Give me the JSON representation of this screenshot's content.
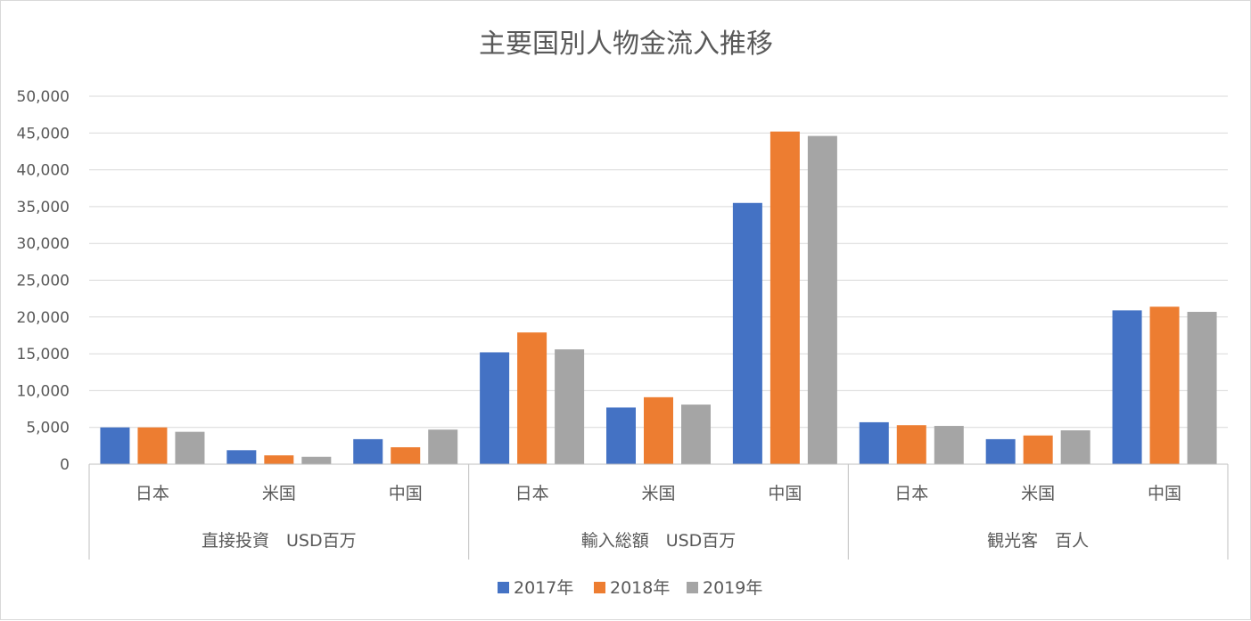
{
  "chart_data": {
    "type": "bar",
    "title": "主要国別人物金流入推移",
    "groups": [
      {
        "label": "直接投資　USD百万",
        "categories": [
          "日本",
          "米国",
          "中国"
        ]
      },
      {
        "label": "輸入総額　USD百万",
        "categories": [
          "日本",
          "米国",
          "中国"
        ]
      },
      {
        "label": "観光客　百人",
        "categories": [
          "日本",
          "米国",
          "中国"
        ]
      }
    ],
    "series": [
      {
        "name": "2017年",
        "color": "#4472C4",
        "values": [
          5000,
          1900,
          3400,
          15200,
          7700,
          35500,
          5700,
          3400,
          20900
        ]
      },
      {
        "name": "2018年",
        "color": "#ED7D31",
        "values": [
          5000,
          1200,
          2300,
          17900,
          9100,
          45200,
          5300,
          3900,
          21400
        ]
      },
      {
        "name": "2019年",
        "color": "#A5A5A5",
        "values": [
          4400,
          1000,
          4700,
          15600,
          8100,
          44600,
          5200,
          4600,
          20700
        ]
      }
    ],
    "ylim": [
      0,
      50000
    ],
    "yticks": [
      "0",
      "5,000",
      "10,000",
      "15,000",
      "20,000",
      "25,000",
      "30,000",
      "35,000",
      "40,000",
      "45,000",
      "50,000"
    ],
    "grid": true,
    "legend": "bottom"
  }
}
